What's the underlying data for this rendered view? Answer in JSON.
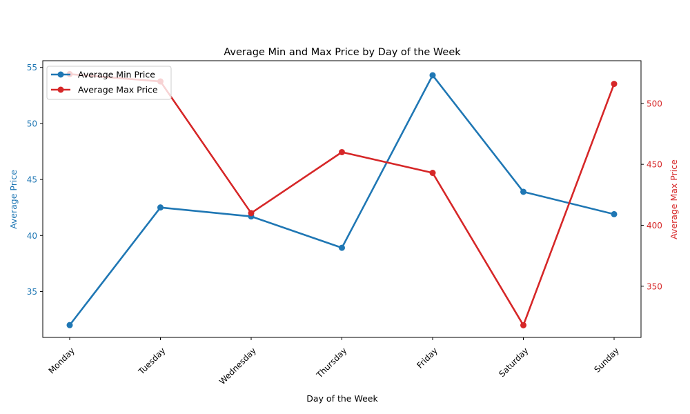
{
  "chart_data": {
    "type": "line",
    "title": "Average Min and Max Price by Day of the Week",
    "xlabel": "Day of the Week",
    "categories": [
      "Monday",
      "Tuesday",
      "Wednesday",
      "Thursday",
      "Friday",
      "Saturday",
      "Sunday"
    ],
    "y_left": {
      "label": "Average Price",
      "ticks": [
        35,
        40,
        45,
        50,
        55
      ],
      "range": [
        30.9,
        55.6
      ],
      "color": "#1f77b4"
    },
    "y_right": {
      "label": "Average Max Price",
      "ticks": [
        350,
        400,
        450,
        500
      ],
      "range": [
        308,
        535
      ],
      "color": "#d62728"
    },
    "series": [
      {
        "name": "Average Min Price",
        "axis": "left",
        "color": "#1f77b4",
        "values": [
          32.0,
          42.5,
          41.7,
          38.9,
          54.3,
          43.9,
          41.9
        ]
      },
      {
        "name": "Average Max Price",
        "axis": "right",
        "color": "#d62728",
        "values": [
          524,
          518,
          410,
          460,
          443,
          318,
          516
        ]
      }
    ],
    "grid": false,
    "legend_position": "top-left"
  }
}
